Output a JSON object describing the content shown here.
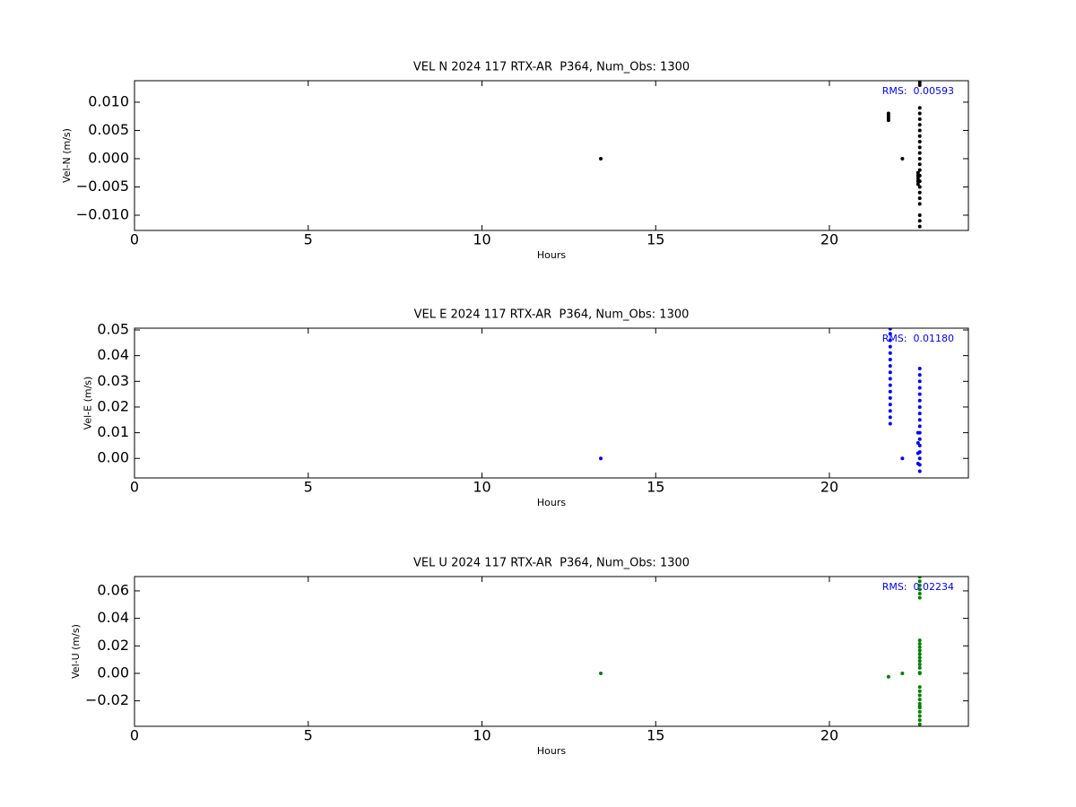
{
  "chart_data": [
    {
      "type": "scatter",
      "title": "VEL N 2024 117 RTX-AR  P364, Num_Obs: 1300",
      "xlabel": "Hours",
      "ylabel": "Vel-N (m/s)",
      "annotation": "RMS:  0.00593",
      "annotation_color": "#0000ff",
      "color": "#000000",
      "xlim": [
        0,
        24
      ],
      "ylim": [
        -0.0127,
        0.0138
      ],
      "xticks": [
        0,
        5,
        10,
        15,
        20
      ],
      "yticks": [
        {
          "value": -0.01,
          "label": "−0.010"
        },
        {
          "value": -0.005,
          "label": "−0.005"
        },
        {
          "value": 0,
          "label": "0.000"
        },
        {
          "value": 0.005,
          "label": "0.005"
        },
        {
          "value": 0.01,
          "label": "0.010"
        }
      ],
      "x": [
        13.42,
        21.7,
        21.7,
        21.7,
        21.7,
        22.1,
        22.55,
        22.55,
        22.55,
        22.55,
        22.55,
        22.6,
        22.6,
        22.6,
        22.6,
        22.6,
        22.6,
        22.6,
        22.6,
        22.6,
        22.6,
        22.6,
        22.6,
        22.6,
        22.6,
        22.6,
        22.6,
        22.6,
        22.6,
        22.6,
        22.6,
        22.6,
        22.6,
        22.6
      ],
      "y": [
        0,
        0.0068,
        0.0072,
        0.0076,
        0.008,
        0,
        -0.0025,
        -0.003,
        -0.0035,
        -0.004,
        -0.0045,
        0.0135,
        0.013,
        0.009,
        0.008,
        0.007,
        0.006,
        0.005,
        0.004,
        0.003,
        0.002,
        0.001,
        0,
        -0.001,
        -0.002,
        -0.003,
        -0.004,
        -0.005,
        -0.006,
        -0.007,
        -0.008,
        -0.01,
        -0.011,
        -0.012
      ]
    },
    {
      "type": "scatter",
      "title": "VEL E 2024 117 RTX-AR  P364, Num_Obs: 1300",
      "xlabel": "Hours",
      "ylabel": "Vel-E (m/s)",
      "annotation": "RMS:  0.01180",
      "annotation_color": "#0000ff",
      "color": "#0000ff",
      "xlim": [
        0,
        24
      ],
      "ylim": [
        -0.0076,
        0.0507
      ],
      "xticks": [
        0,
        5,
        10,
        15,
        20
      ],
      "yticks": [
        {
          "value": 0,
          "label": "0.00"
        },
        {
          "value": 0.01,
          "label": "0.01"
        },
        {
          "value": 0.02,
          "label": "0.02"
        },
        {
          "value": 0.03,
          "label": "0.03"
        },
        {
          "value": 0.04,
          "label": "0.04"
        },
        {
          "value": 0.05,
          "label": "0.05"
        }
      ],
      "x": [
        13.42,
        21.75,
        21.75,
        21.75,
        21.75,
        21.75,
        21.75,
        21.75,
        21.75,
        21.75,
        21.75,
        21.75,
        21.75,
        21.75,
        21.75,
        21.75,
        21.75,
        22.1,
        22.6,
        22.6,
        22.6,
        22.6,
        22.6,
        22.6,
        22.6,
        22.6,
        22.6,
        22.6,
        22.6,
        22.6,
        22.6,
        22.6,
        22.6,
        22.6,
        22.6,
        22.55,
        22.55,
        22.55,
        22.55
      ],
      "y": [
        0,
        0.0135,
        0.016,
        0.0185,
        0.021,
        0.0235,
        0.026,
        0.0285,
        0.031,
        0.0335,
        0.036,
        0.0385,
        0.041,
        0.0435,
        0.046,
        0.0485,
        0.0505,
        0,
        0.035,
        0.0325,
        0.03,
        0.0275,
        0.025,
        0.0225,
        0.02,
        0.0175,
        0.015,
        0.0125,
        0.01,
        0.0075,
        0.005,
        0.0025,
        0,
        -0.0025,
        -0.005,
        0.01,
        0.006,
        0.002,
        -0.002
      ]
    },
    {
      "type": "scatter",
      "title": "VEL U 2024 117 RTX-AR  P364, Num_Obs: 1300",
      "xlabel": "Hours",
      "ylabel": "Vel-U (m/s)",
      "annotation": "RMS:  0.02234",
      "annotation_color": "#0000ff",
      "color": "#008000",
      "xlim": [
        0,
        24
      ],
      "ylim": [
        -0.0385,
        0.0704
      ],
      "xticks": [
        0,
        5,
        10,
        15,
        20
      ],
      "yticks": [
        {
          "value": -0.02,
          "label": "−0.02"
        },
        {
          "value": 0,
          "label": "0.00"
        },
        {
          "value": 0.02,
          "label": "0.02"
        },
        {
          "value": 0.04,
          "label": "0.04"
        },
        {
          "value": 0.06,
          "label": "0.06"
        }
      ],
      "x": [
        13.42,
        21.7,
        22.1,
        22.6,
        22.6,
        22.6,
        22.6,
        22.6,
        22.6,
        22.6,
        22.6,
        22.6,
        22.6,
        22.6,
        22.6,
        22.6,
        22.6,
        22.6,
        22.6,
        22.6,
        22.6,
        22.6,
        22.6,
        22.6,
        22.6,
        22.6,
        22.6,
        22.6,
        22.6,
        22.6,
        22.6
      ],
      "y": [
        0,
        -0.0025,
        0,
        0,
        0.0005,
        0.024,
        0.0215,
        0.019,
        0.0165,
        0.014,
        0.0115,
        0.009,
        0.0065,
        0.004,
        0.0702,
        0.067,
        0.064,
        0.061,
        0.058,
        0.055,
        -0.01,
        -0.013,
        -0.016,
        -0.019,
        -0.022,
        -0.025,
        -0.028,
        -0.031,
        -0.034,
        -0.037,
        -0.024
      ]
    }
  ]
}
